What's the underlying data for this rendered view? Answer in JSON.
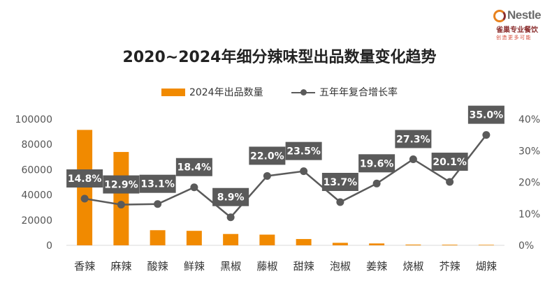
{
  "logo": {
    "brand": "Nestle",
    "sub": "雀巢专业餐饮",
    "tagline": "创造更多可能"
  },
  "legend": {
    "bar_label": "2024年出品数量",
    "line_label": "五年年复合增长率"
  },
  "colors": {
    "bar": "#f18a00",
    "line": "#5a5a5a",
    "label_box": "#5a5a5a",
    "label_text": "#ffffff"
  },
  "chart_data": {
    "type": "bar",
    "title": "2020~2024年细分辣味型出品数量变化趋势",
    "categories": [
      "香辣",
      "麻辣",
      "酸辣",
      "鲜辣",
      "黑椒",
      "藤椒",
      "甜辣",
      "泡椒",
      "姜辣",
      "烧椒",
      "芥辣",
      "煳辣"
    ],
    "series": [
      {
        "name": "2024年出品数量",
        "type": "bar",
        "axis": "left",
        "values": [
          91500,
          74000,
          12000,
          11500,
          9000,
          8500,
          5000,
          2000,
          1500,
          600,
          500,
          400
        ]
      },
      {
        "name": "五年年复合增长率",
        "type": "line",
        "axis": "right",
        "values": [
          14.8,
          12.9,
          13.1,
          18.4,
          8.9,
          22.0,
          23.5,
          13.7,
          19.6,
          27.3,
          20.1,
          35.0
        ],
        "labels": [
          "14.8%",
          "12.9%",
          "13.1%",
          "18.4%",
          "8.9%",
          "22.0%",
          "23.5%",
          "13.7%",
          "19.6%",
          "27.3%",
          "20.1%",
          "35.0%"
        ]
      }
    ],
    "y_left": {
      "ylim": [
        0,
        100000
      ],
      "ticks": [
        0,
        20000,
        40000,
        60000,
        80000,
        100000
      ],
      "tick_labels": [
        "0",
        "20000",
        "40000",
        "60000",
        "80000",
        "100000"
      ]
    },
    "y_right": {
      "ylim": [
        0,
        40
      ],
      "ticks": [
        0,
        10,
        20,
        30,
        40
      ],
      "tick_labels": [
        "0%",
        "10%",
        "20%",
        "30%",
        "40%"
      ]
    },
    "grid": false,
    "legend_position": "top"
  }
}
